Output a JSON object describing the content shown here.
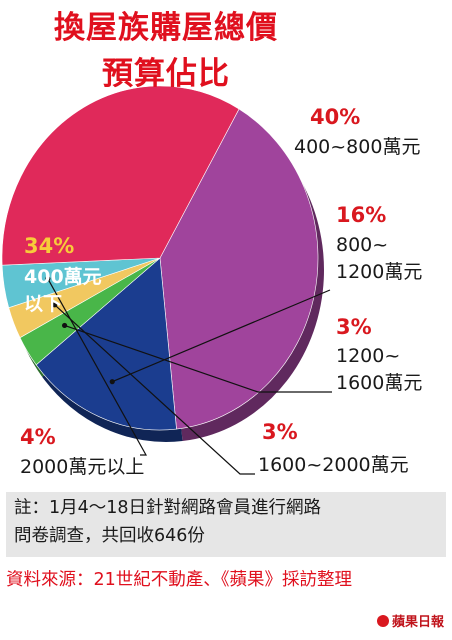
{
  "title": {
    "line1": "換屋族購屋總價",
    "line2": "預算佔比"
  },
  "chart_data": {
    "type": "pie",
    "title": "換屋族購屋總價預算佔比",
    "slices": [
      {
        "label_line1": "400~800萬元",
        "label_line2": "",
        "percent_label": "40%",
        "value": 40,
        "color": "#a0449c"
      },
      {
        "label_line1": "800~",
        "label_line2": "1200萬元",
        "percent_label": "16%",
        "value": 16,
        "color": "#1b3d8f"
      },
      {
        "label_line1": "1200~",
        "label_line2": "1600萬元",
        "percent_label": "3%",
        "value": 3,
        "color": "#49b649"
      },
      {
        "label_line1": "1600~2000萬元",
        "label_line2": "",
        "percent_label": "3%",
        "value": 3,
        "color": "#f1c860"
      },
      {
        "label_line1": "2000萬元以上",
        "label_line2": "",
        "percent_label": "4%",
        "value": 4,
        "color": "#5fc4d2"
      },
      {
        "label_line1": "400萬元",
        "label_line2": "以下",
        "percent_label": "34%",
        "value": 34,
        "color": "#e0295a"
      }
    ]
  },
  "note": {
    "line1": "註：1月4～18日針對網路會員進行網路",
    "line2": "問卷調查，共回收646份"
  },
  "source": "資料來源：21世紀不動產、《蘋果》採訪整理",
  "brand": "蘋果日報"
}
